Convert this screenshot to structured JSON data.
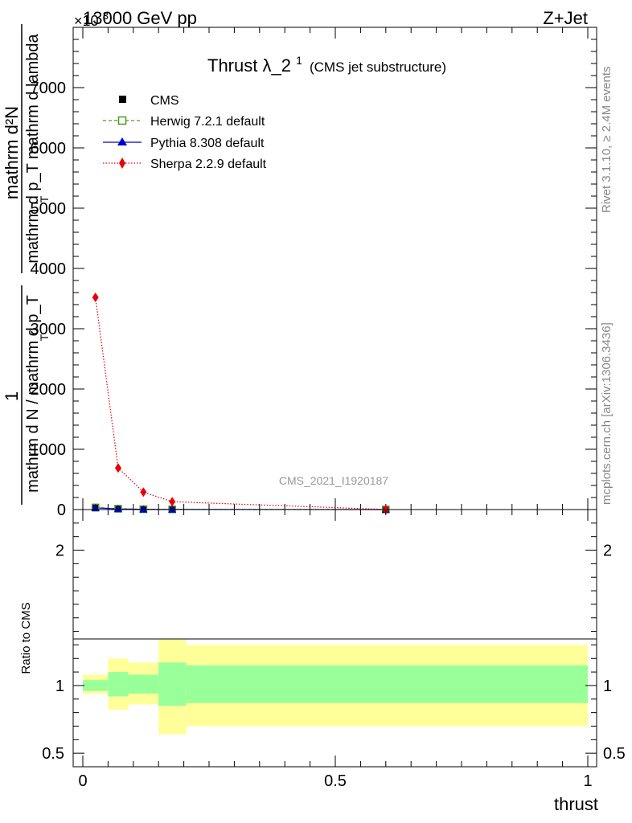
{
  "header": {
    "energy": "13000 GeV pp",
    "process": "Z+Jet",
    "exponent": "×10",
    "exponent_power": "3"
  },
  "side": {
    "rivet": "Rivet 3.1.10, ≥ 2.4M events",
    "mcplots": "mcplots.cern.ch [arXiv:1306.3436]"
  },
  "plot_title": {
    "main": "Thrust λ_2",
    "sup": "1",
    "sub": "(CMS jet substructure)"
  },
  "watermark": "CMS_2021_I1920187",
  "ylabel": {
    "frac_num": "1",
    "frac_den": "mathrm d N / mathrm d p_T",
    "main": "mathrm d p_T mathrm d lambda",
    "main_top": "mathrm d²N",
    "sub_t1": "T",
    "sub_t2": "T"
  },
  "ratio_ylabel": "Ratio to CMS",
  "xlabel": "thrust",
  "legend": [
    {
      "label": "CMS",
      "color": "#000000",
      "marker": "square-filled",
      "line": "none"
    },
    {
      "label": "Herwig 7.2.1 default",
      "color": "#4d9a1f",
      "marker": "square-open",
      "line": "dashed"
    },
    {
      "label": "Pythia 8.308 default",
      "color": "#0000cc",
      "marker": "triangle",
      "line": "solid"
    },
    {
      "label": "Sherpa 2.2.9 default",
      "color": "#e8000b",
      "marker": "diamond",
      "line": "dotted"
    }
  ],
  "chart_data": {
    "type": "line",
    "main_panel": {
      "xlim": [
        0,
        1
      ],
      "ylim": [
        0,
        8000
      ],
      "ytick_values": [
        0,
        1000,
        2000,
        3000,
        4000,
        5000,
        6000,
        7000
      ],
      "ytick_labels": [
        "0",
        "1000",
        "2000",
        "3000",
        "4000",
        "5000",
        "6000",
        "7000"
      ],
      "y_scale_factor": "×10³",
      "x": [
        0.025,
        0.07,
        0.12,
        0.177,
        0.6
      ],
      "bin_edges": [
        0,
        0.05,
        0.09,
        0.15,
        0.205,
        1.0
      ],
      "series": [
        {
          "name": "CMS",
          "values": [
            30,
            12,
            5,
            2,
            0.5
          ]
        },
        {
          "name": "Herwig 7.2.1 default",
          "values": [
            35,
            14,
            6,
            3,
            0.6
          ]
        },
        {
          "name": "Pythia 8.308 default",
          "values": [
            28,
            11,
            4,
            2,
            0.5
          ]
        },
        {
          "name": "Sherpa 2.2.9 default",
          "values": [
            3520,
            690,
            290,
            130,
            2
          ]
        }
      ]
    },
    "ratio_panel": {
      "ylim": [
        0.4,
        2.3
      ],
      "ytick_values": [
        0.5,
        1,
        2
      ],
      "ytick_labels": [
        "0.5",
        "1",
        "2"
      ],
      "bin_edges": [
        0,
        0.05,
        0.09,
        0.15,
        0.205,
        1.0
      ],
      "inner_band": [
        [
          0.96,
          1.04
        ],
        [
          0.92,
          1.1
        ],
        [
          0.94,
          1.08
        ],
        [
          0.85,
          1.17
        ],
        [
          0.87,
          1.15
        ]
      ],
      "outer_band": [
        [
          0.94,
          1.08
        ],
        [
          0.82,
          1.2
        ],
        [
          0.86,
          1.17
        ],
        [
          0.64,
          1.34
        ],
        [
          0.7,
          1.3
        ]
      ]
    },
    "xtick_values": [
      0,
      0.5,
      1
    ],
    "xtick_labels": [
      "0",
      "0.5",
      "1"
    ],
    "xlabel": "thrust",
    "ylabel_ratio": "Ratio to CMS",
    "colors": {
      "inner_band": "#99ff99",
      "outer_band": "#ffff99"
    }
  }
}
